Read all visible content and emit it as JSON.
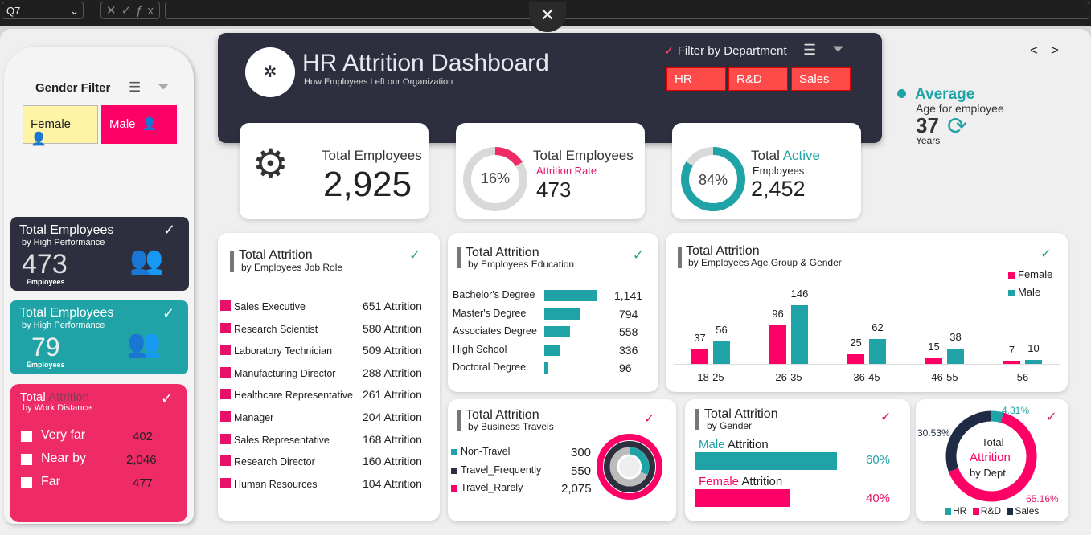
{
  "formula_bar": {
    "name_box": "Q7",
    "fx_icons": "✕✓ƒx",
    "close": "✕"
  },
  "header": {
    "title": "HR Attrition Dashboard",
    "subtitle": "How Employees Left our Organization",
    "filter_label": "Filter by Department",
    "departments": [
      "HR",
      "R&D",
      "Sales"
    ]
  },
  "nav": {
    "prev": "<",
    "next": ">"
  },
  "gender_filter": {
    "title": "Gender  Filter",
    "options": [
      "Female",
      "Male"
    ]
  },
  "side_cards": [
    {
      "title": "Total Employees",
      "subtitle": "by High Performance",
      "value": "473",
      "unit": "Employees"
    },
    {
      "title": "Total Employees",
      "subtitle": "by High Performance",
      "value": "79",
      "unit": "Employees"
    }
  ],
  "work_distance": {
    "title": "Total",
    "title_accent": "Attrition",
    "subtitle": "by Work Distance",
    "items": [
      {
        "label": "Very far",
        "value": "402"
      },
      {
        "label": "Near by",
        "value": "2,046"
      },
      {
        "label": "Far",
        "value": "477"
      }
    ]
  },
  "kpis": {
    "total": {
      "label": "Total Employees",
      "value": "2,925"
    },
    "attrition": {
      "label": "Total Employees",
      "sub": "Attrition Rate",
      "value": "473",
      "pct": "16%",
      "pct_value": 16
    },
    "active": {
      "label": "Total",
      "label_accent": "Active",
      "sub": "Employees",
      "value": "2,452",
      "pct": "84%",
      "pct_value": 84
    }
  },
  "average": {
    "title": "Average",
    "sub": "Age for employee",
    "value": "37",
    "unit": "Years"
  },
  "job_role": {
    "title": "Total Attrition",
    "subtitle": "by Employees Job Role",
    "rows": [
      {
        "role": "Sales Executive",
        "value": "651 Attrition"
      },
      {
        "role": "Research Scientist",
        "value": "580 Attrition"
      },
      {
        "role": "Laboratory Technician",
        "value": "509 Attrition"
      },
      {
        "role": "Manufacturing Director",
        "value": "288 Attrition"
      },
      {
        "role": "Healthcare Representative",
        "value": "261 Attrition"
      },
      {
        "role": "Manager",
        "value": "204 Attrition"
      },
      {
        "role": "Sales Representative",
        "value": "168 Attrition"
      },
      {
        "role": "Research Director",
        "value": "160 Attrition"
      },
      {
        "role": "Human Resources",
        "value": "104 Attrition"
      }
    ]
  },
  "chart_data": [
    {
      "type": "bar",
      "title": "Total Attrition",
      "subtitle": "by Employees Education",
      "categories": [
        "Bachelor's Degree",
        "Master's Degree",
        "Associates Degree",
        "High School",
        "Doctoral Degree"
      ],
      "values": [
        1141,
        794,
        558,
        336,
        96
      ],
      "labels": [
        "1,141",
        "794",
        "558",
        "336",
        "96"
      ],
      "orientation": "horizontal",
      "color": "#1fa3a6"
    },
    {
      "type": "bar",
      "title": "Total Attrition",
      "subtitle": "by Employees Age Group & Gender",
      "categories": [
        "18-25",
        "26-35",
        "36-45",
        "46-55",
        "56"
      ],
      "series": [
        {
          "name": "Female",
          "values": [
            37,
            96,
            25,
            15,
            7
          ],
          "color": "#ff0066"
        },
        {
          "name": "Male",
          "values": [
            56,
            146,
            62,
            38,
            10
          ],
          "color": "#1fa3a6"
        }
      ],
      "legend": "top-right"
    },
    {
      "type": "pie",
      "title": "Total Attrition",
      "subtitle": "by Business Travels",
      "categories": [
        "Non-Travel",
        "Travel_Frequently",
        "Travel_Rarely"
      ],
      "values": [
        300,
        550,
        2075
      ],
      "labels": [
        "300",
        "550",
        "2,075"
      ],
      "colors": [
        "#1fa3a6",
        "#2e2f3e",
        "#ff0066"
      ]
    },
    {
      "type": "bar",
      "title": "Total Attrition",
      "subtitle": "by Gender",
      "categories": [
        "Male",
        "Female"
      ],
      "label_suffix": "Attrition",
      "values": [
        60,
        40
      ],
      "labels": [
        "60%",
        "40%"
      ],
      "colors": [
        "#1fa3a6",
        "#ff0066"
      ]
    },
    {
      "type": "pie",
      "center_lines": [
        "Total",
        "Attrition",
        "by Dept."
      ],
      "categories": [
        "HR",
        "R&D",
        "Sales"
      ],
      "values": [
        4.31,
        65.16,
        30.53
      ],
      "labels": [
        "4.31%",
        "65.16%",
        "30.53%"
      ],
      "colors": [
        "#1fa3a6",
        "#ff0066",
        "#1f2a44"
      ],
      "legend": "bottom"
    }
  ]
}
